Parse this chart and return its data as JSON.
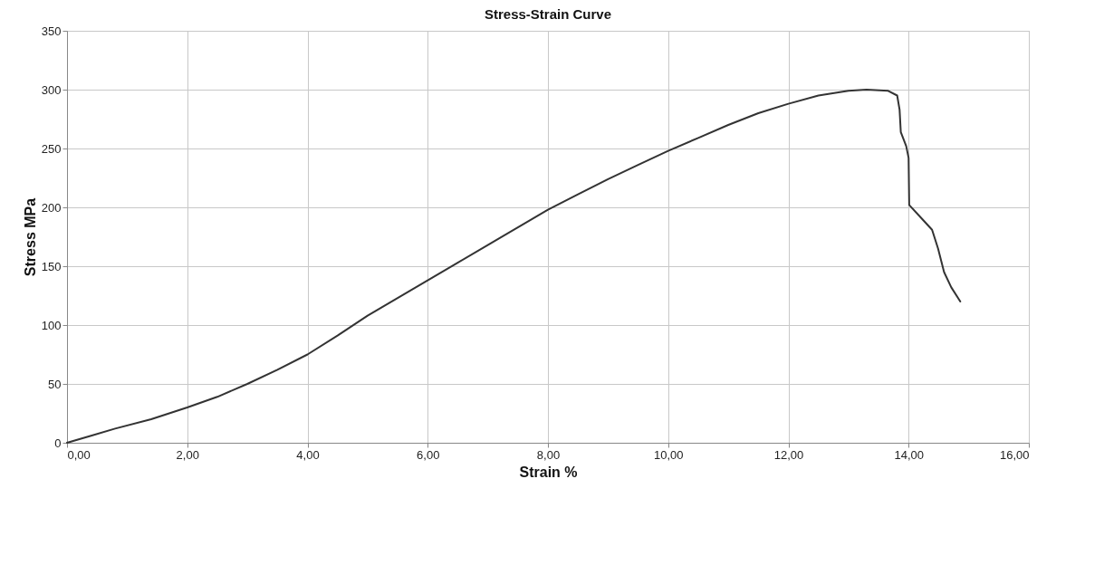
{
  "chart_data": {
    "type": "line",
    "title": "Stress-Strain Curve",
    "xlabel": "Strain %",
    "ylabel": "Stress MPa",
    "series": [
      {
        "color": "#333333",
        "x": [
          0,
          0.4,
          0.8,
          1.4,
          2,
          2.5,
          3,
          3.5,
          4,
          4.5,
          5,
          5.5,
          6,
          6.5,
          7,
          7.5,
          8,
          8.5,
          9,
          9.5,
          10,
          10.5,
          11,
          11.5,
          12,
          12.5,
          13,
          13.3,
          13.66,
          13.81,
          13.85,
          13.87,
          13.96,
          14.0,
          14.01,
          14.21,
          14.39,
          14.49,
          14.59,
          14.71,
          14.86
        ],
        "values": [
          0,
          6,
          12,
          20,
          30,
          39,
          50,
          62,
          75,
          91,
          108,
          123,
          138,
          153,
          168,
          183,
          198,
          211,
          224,
          236,
          248,
          259,
          270,
          280,
          288,
          295,
          299,
          300,
          299,
          295,
          283,
          264,
          252,
          242,
          202,
          191,
          181,
          165,
          145,
          132,
          120
        ]
      }
    ],
    "xlim": [
      0,
      16
    ],
    "ylim": [
      0,
      350
    ],
    "xticks": [
      {
        "value": 0,
        "label": "0,00"
      },
      {
        "value": 2,
        "label": "2,00"
      },
      {
        "value": 4,
        "label": "4,00"
      },
      {
        "value": 6,
        "label": "6,00"
      },
      {
        "value": 8,
        "label": "8,00"
      },
      {
        "value": 10,
        "label": "10,00"
      },
      {
        "value": 12,
        "label": "12,00"
      },
      {
        "value": 14,
        "label": "14,00"
      },
      {
        "value": 16,
        "label": "16,00"
      }
    ],
    "yticks": [
      0,
      50,
      100,
      150,
      200,
      250,
      300,
      350
    ],
    "grid": true,
    "marker": "none",
    "line_style": "solid"
  }
}
